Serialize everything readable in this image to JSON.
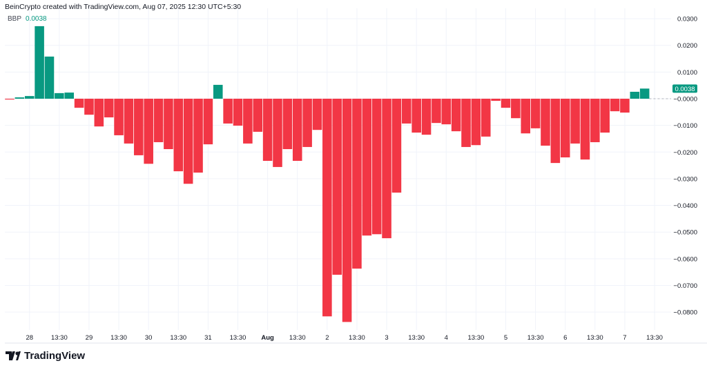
{
  "header": {
    "credit": "BeinCrypto created with TradingView.com, Aug 07, 2025 12:30 UTC+5:30"
  },
  "legend": {
    "indicator": "BBP",
    "value": "0.0038"
  },
  "logo": {
    "text": "TradingView"
  },
  "colors": {
    "positive": "#089981",
    "negative": "#f23645",
    "grid": "#f0f3fa",
    "text": "#131722"
  },
  "chart_data": {
    "type": "bar",
    "title": "",
    "series_name": "BBP",
    "last_value_label": "0.0038",
    "ylim": [
      -0.088,
      0.033
    ],
    "y_ticks": [
      "0.0300",
      "0.0200",
      "0.0100",
      "−0.0000",
      "−0.0100",
      "−0.0200",
      "−0.0300",
      "−0.0400",
      "−0.0500",
      "−0.0600",
      "−0.0700",
      "−0.0800"
    ],
    "y_tick_values": [
      0.03,
      0.02,
      0.01,
      0,
      -0.01,
      -0.02,
      -0.03,
      -0.04,
      -0.05,
      -0.06,
      -0.07,
      -0.08
    ],
    "x_ticks": [
      "28",
      "13:30",
      "29",
      "13:30",
      "30",
      "13:30",
      "31",
      "13:30",
      "Aug",
      "13:30",
      "2",
      "13:30",
      "3",
      "13:30",
      "4",
      "13:30",
      "5",
      "13:30",
      "6",
      "13:30",
      "7",
      "13:30"
    ],
    "x_ticks_bold": [
      "Aug"
    ],
    "grid": true,
    "values": [
      -0.0003,
      0.0005,
      0.001,
      0.0272,
      0.0158,
      0.0021,
      0.0023,
      -0.0034,
      -0.006,
      -0.0104,
      -0.007,
      -0.0137,
      -0.0168,
      -0.0212,
      -0.0244,
      -0.0163,
      -0.0189,
      -0.0272,
      -0.0319,
      -0.0277,
      -0.0171,
      0.0052,
      -0.0093,
      -0.0101,
      -0.0168,
      -0.0124,
      -0.0233,
      -0.0256,
      -0.0189,
      -0.0233,
      -0.0181,
      -0.0117,
      -0.0816,
      -0.066,
      -0.0837,
      -0.0637,
      -0.0513,
      -0.0508,
      -0.0523,
      -0.0352,
      -0.0093,
      -0.0127,
      -0.0135,
      -0.0091,
      -0.0096,
      -0.0122,
      -0.0181,
      -0.0174,
      -0.0142,
      -0.0008,
      -0.0034,
      -0.0073,
      -0.013,
      -0.0111,
      -0.0176,
      -0.0241,
      -0.022,
      -0.0168,
      -0.0228,
      -0.0163,
      -0.0127,
      -0.0047,
      -0.0052,
      0.0026,
      0.0038
    ]
  }
}
